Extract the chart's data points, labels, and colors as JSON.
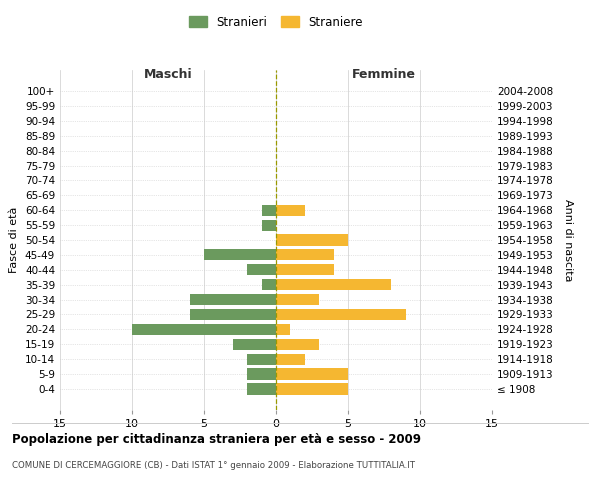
{
  "age_groups": [
    "100+",
    "95-99",
    "90-94",
    "85-89",
    "80-84",
    "75-79",
    "70-74",
    "65-69",
    "60-64",
    "55-59",
    "50-54",
    "45-49",
    "40-44",
    "35-39",
    "30-34",
    "25-29",
    "20-24",
    "15-19",
    "10-14",
    "5-9",
    "0-4"
  ],
  "birth_years": [
    "≤ 1908",
    "1909-1913",
    "1914-1918",
    "1919-1923",
    "1924-1928",
    "1929-1933",
    "1934-1938",
    "1939-1943",
    "1944-1948",
    "1949-1953",
    "1954-1958",
    "1959-1963",
    "1964-1968",
    "1969-1973",
    "1974-1978",
    "1979-1983",
    "1984-1988",
    "1989-1993",
    "1994-1998",
    "1999-2003",
    "2004-2008"
  ],
  "stranieri": [
    0,
    0,
    0,
    0,
    0,
    0,
    0,
    0,
    1,
    1,
    0,
    5,
    2,
    1,
    6,
    6,
    10,
    3,
    2,
    2,
    2
  ],
  "straniere": [
    0,
    0,
    0,
    0,
    0,
    0,
    0,
    0,
    2,
    0,
    5,
    4,
    4,
    8,
    3,
    9,
    1,
    3,
    2,
    5,
    5
  ],
  "color_stranieri": "#6b9a5e",
  "color_straniere": "#f5b731",
  "xlim": 15,
  "title": "Popolazione per cittadinanza straniera per età e sesso - 2009",
  "subtitle": "COMUNE DI CERCEMAGGIORE (CB) - Dati ISTAT 1° gennaio 2009 - Elaborazione TUTTITALIA.IT",
  "ylabel_left": "Fasce di età",
  "ylabel_right": "Anni di nascita",
  "xlabel_left": "Maschi",
  "xlabel_right": "Femmine",
  "legend_stranieri": "Stranieri",
  "legend_straniere": "Straniere",
  "xticklabels": [
    "15",
    "10",
    "5",
    "0",
    "5",
    "10",
    "15"
  ],
  "bar_height": 0.75
}
